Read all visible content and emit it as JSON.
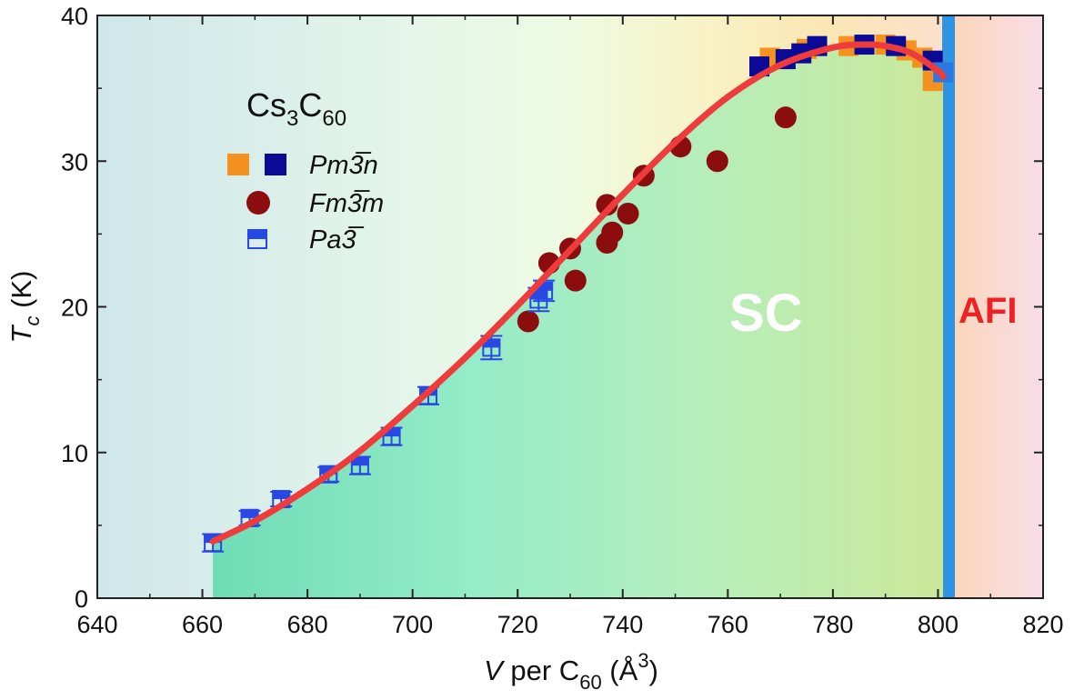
{
  "chart_data": {
    "type": "scatter",
    "title": "",
    "xlabel": {
      "italic": "V",
      "rest": " per C",
      "sub": "60",
      "unit": " (Å",
      "sup": "3",
      "close": ")"
    },
    "ylabel": {
      "italic": "T",
      "sub": "c",
      "unit": " (K)"
    },
    "xlim": [
      640,
      820
    ],
    "ylim": [
      0,
      40
    ],
    "xticks": [
      640,
      660,
      680,
      700,
      720,
      740,
      760,
      780,
      800,
      820
    ],
    "yticks": [
      0,
      10,
      20,
      30,
      40
    ],
    "compound": {
      "main": "Cs",
      "sub1": "3",
      "mid": "C",
      "sub2": "60"
    },
    "legend": {
      "position": "top-left",
      "entries": [
        {
          "label": "Pm3̅n",
          "marker": "square-pair",
          "colors": [
            "#f5911e",
            "#0a0a96"
          ]
        },
        {
          "label": "Fm3̅m",
          "marker": "circle",
          "colors": [
            "#8b0d0d"
          ]
        },
        {
          "label": "Pa3̅",
          "marker": "half-filled-square",
          "colors": [
            "#2848e6"
          ]
        }
      ]
    },
    "regions": [
      {
        "label": "SC",
        "color": "#ffffff"
      },
      {
        "label": "AFI",
        "color": "#ee2222"
      }
    ],
    "phase_boundary_x": 802,
    "series": [
      {
        "name": "Pm3̅n",
        "marker": "square",
        "color": "#f5911e",
        "points": [
          [
            768,
            37.1
          ],
          [
            775,
            37.7
          ],
          [
            783,
            37.9
          ],
          [
            790,
            38.0
          ],
          [
            794,
            37.6
          ],
          [
            797,
            37.1
          ],
          [
            799,
            35.5
          ]
        ]
      },
      {
        "name": "Pm3̅n",
        "marker": "square",
        "color": "#0a0a96",
        "points": [
          [
            766,
            36.5
          ],
          [
            771,
            37.0
          ],
          [
            774,
            37.4
          ],
          [
            777,
            37.9
          ],
          [
            786,
            38.0
          ],
          [
            792,
            37.9
          ],
          [
            799,
            36.9
          ]
        ]
      },
      {
        "name": "Pm3̅n",
        "marker": "square",
        "color": "#2a78e0",
        "points": [
          [
            801,
            36.1
          ]
        ]
      },
      {
        "name": "Fm3̅m",
        "marker": "circle",
        "color": "#8b0d0d",
        "points": [
          [
            722,
            19.0
          ],
          [
            726,
            23.0
          ],
          [
            730,
            24.0
          ],
          [
            731,
            21.8
          ],
          [
            737,
            27.0
          ],
          [
            737,
            24.4
          ],
          [
            738,
            25.1
          ],
          [
            741,
            26.4
          ],
          [
            744,
            29.0
          ],
          [
            751,
            31.0
          ],
          [
            758,
            30.0
          ],
          [
            771,
            33.0
          ]
        ]
      },
      {
        "name": "Pa3̅",
        "marker": "half-filled-square",
        "color": "#2848e6",
        "points": [
          {
            "x": 662,
            "y": 3.8,
            "err": 0.6
          },
          {
            "x": 669,
            "y": 5.5,
            "err": 0.5
          },
          {
            "x": 675,
            "y": 6.8,
            "err": 0.5
          },
          {
            "x": 684,
            "y": 8.5,
            "err": 0.5
          },
          {
            "x": 690,
            "y": 9.1,
            "err": 0.6
          },
          {
            "x": 696,
            "y": 11.1,
            "err": 0.6
          },
          {
            "x": 703,
            "y": 13.9,
            "err": 0.6
          },
          {
            "x": 715,
            "y": 17.2,
            "err": 0.8
          },
          {
            "x": 724,
            "y": 20.5,
            "err": 0.8
          },
          {
            "x": 725,
            "y": 21.1,
            "err": 0.7
          }
        ]
      }
    ],
    "fit_curve": {
      "color": "#ee3b3b",
      "points": [
        [
          662,
          3.9
        ],
        [
          670,
          5.3
        ],
        [
          680,
          7.5
        ],
        [
          690,
          10.1
        ],
        [
          700,
          13.2
        ],
        [
          710,
          16.5
        ],
        [
          720,
          20.1
        ],
        [
          730,
          23.9
        ],
        [
          740,
          27.7
        ],
        [
          750,
          31.3
        ],
        [
          760,
          34.4
        ],
        [
          770,
          36.6
        ],
        [
          780,
          37.8
        ],
        [
          786,
          38.0
        ],
        [
          790,
          37.9
        ],
        [
          795,
          37.4
        ],
        [
          800,
          36.2
        ],
        [
          801,
          35.8
        ]
      ]
    }
  }
}
